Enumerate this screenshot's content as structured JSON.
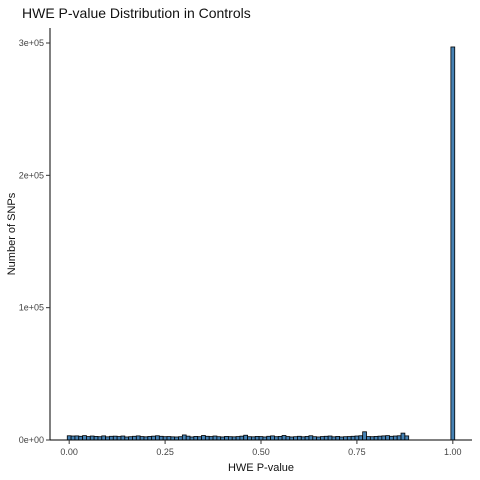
{
  "chart_data": {
    "type": "bar",
    "title": "HWE P-value Distribution in Controls",
    "xlabel": "HWE P-value",
    "ylabel": "Number of SNPs",
    "xlim": [
      -0.05,
      1.05
    ],
    "ylim": [
      0,
      300000
    ],
    "x_ticks": [
      "0.00",
      "0.25",
      "0.50",
      "0.75",
      "1.00"
    ],
    "y_ticks": [
      "0e+00",
      "1e+05",
      "2e+05",
      "3e+05"
    ],
    "grid": false,
    "bin_width": 0.01,
    "fill_color": "#4682B4",
    "edge_color": "#000000",
    "bins": {
      "x": [
        0.0,
        0.01,
        0.02,
        0.03,
        0.04,
        0.05,
        0.06,
        0.07,
        0.08,
        0.09,
        0.1,
        0.11,
        0.12,
        0.13,
        0.14,
        0.15,
        0.16,
        0.17,
        0.18,
        0.19,
        0.2,
        0.21,
        0.22,
        0.23,
        0.24,
        0.25,
        0.26,
        0.27,
        0.28,
        0.29,
        0.3,
        0.31,
        0.32,
        0.33,
        0.34,
        0.35,
        0.36,
        0.37,
        0.38,
        0.39,
        0.4,
        0.41,
        0.42,
        0.43,
        0.44,
        0.45,
        0.46,
        0.47,
        0.48,
        0.49,
        0.5,
        0.51,
        0.52,
        0.53,
        0.54,
        0.55,
        0.56,
        0.57,
        0.58,
        0.59,
        0.6,
        0.61,
        0.62,
        0.63,
        0.64,
        0.65,
        0.66,
        0.67,
        0.68,
        0.69,
        0.7,
        0.71,
        0.72,
        0.73,
        0.74,
        0.75,
        0.76,
        0.77,
        0.78,
        0.79,
        0.8,
        0.81,
        0.82,
        0.83,
        0.84,
        0.85,
        0.86,
        0.87,
        0.88,
        1.0
      ],
      "values": [
        3200,
        3000,
        3100,
        2800,
        3300,
        2600,
        3000,
        2700,
        2500,
        3100,
        2400,
        2800,
        2900,
        2600,
        3000,
        2300,
        2500,
        2800,
        3100,
        2600,
        2400,
        2700,
        2900,
        3200,
        2800,
        2500,
        2600,
        2400,
        2300,
        2500,
        3800,
        2900,
        2300,
        2700,
        2500,
        3400,
        2800,
        2600,
        3000,
        2500,
        2300,
        2700,
        2500,
        2400,
        2600,
        2900,
        3600,
        2500,
        2400,
        2700,
        2600,
        2300,
        2800,
        3100,
        2500,
        2700,
        3400,
        2600,
        2300,
        2500,
        2800,
        2400,
        2700,
        3200,
        2500,
        2300,
        2600,
        2800,
        3000,
        2400,
        2700,
        2300,
        2500,
        2600,
        2800,
        3000,
        3200,
        6200,
        2600,
        2500,
        2700,
        2900,
        3100,
        3300,
        2800,
        3000,
        3200,
        5200,
        3100,
        297000
      ]
    }
  }
}
